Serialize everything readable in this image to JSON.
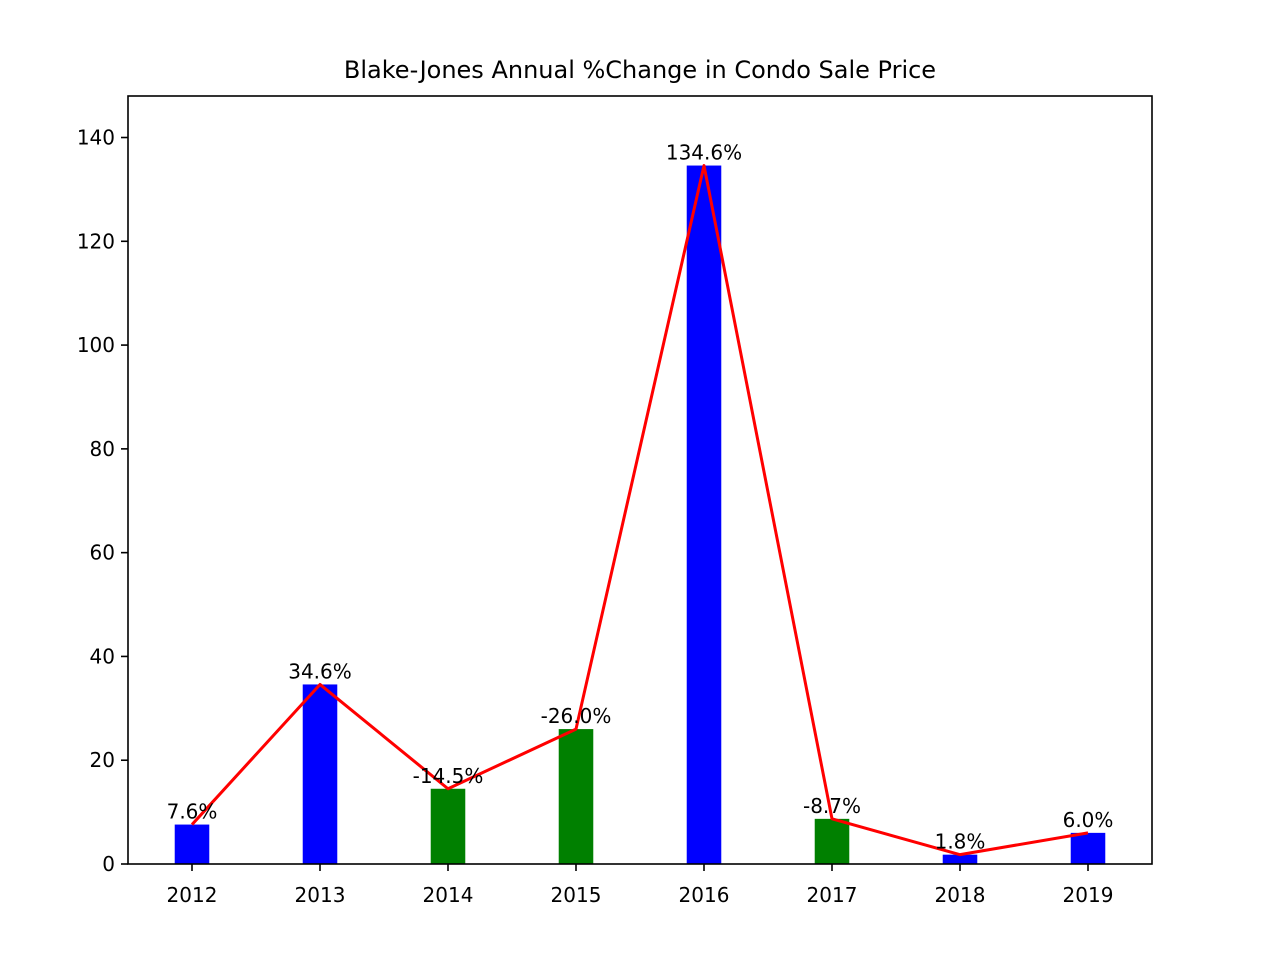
{
  "chart_data": {
    "type": "bar",
    "title": "Blake-Jones Annual %Change in Condo Sale Price",
    "xlabel": "",
    "ylabel": "",
    "categories": [
      "2012",
      "2013",
      "2014",
      "2015",
      "2016",
      "2017",
      "2018",
      "2019"
    ],
    "values": [
      7.6,
      34.6,
      14.5,
      26.0,
      134.6,
      8.7,
      1.8,
      6.0
    ],
    "signed_change": [
      7.6,
      34.6,
      -14.5,
      -26.0,
      134.6,
      -8.7,
      1.8,
      6.0
    ],
    "labels": [
      "7.6%",
      "34.6%",
      "-14.5%",
      "-26.0%",
      "134.6%",
      "-8.7%",
      "1.8%",
      "6.0%"
    ],
    "bar_colors": [
      "#0000ff",
      "#0000ff",
      "#008000",
      "#008000",
      "#0000ff",
      "#008000",
      "#0000ff",
      "#0000ff"
    ],
    "colors": {
      "increase": "#0000ff",
      "decrease": "#008000",
      "line": "#ff0000"
    },
    "overlay_line": {
      "type": "line",
      "values": [
        7.6,
        34.6,
        14.5,
        26.0,
        134.6,
        8.7,
        1.8,
        6.0
      ]
    },
    "yticks": [
      0,
      20,
      40,
      60,
      80,
      100,
      120,
      140
    ],
    "ylim": [
      0,
      148
    ],
    "grid": false,
    "legend": "none"
  }
}
